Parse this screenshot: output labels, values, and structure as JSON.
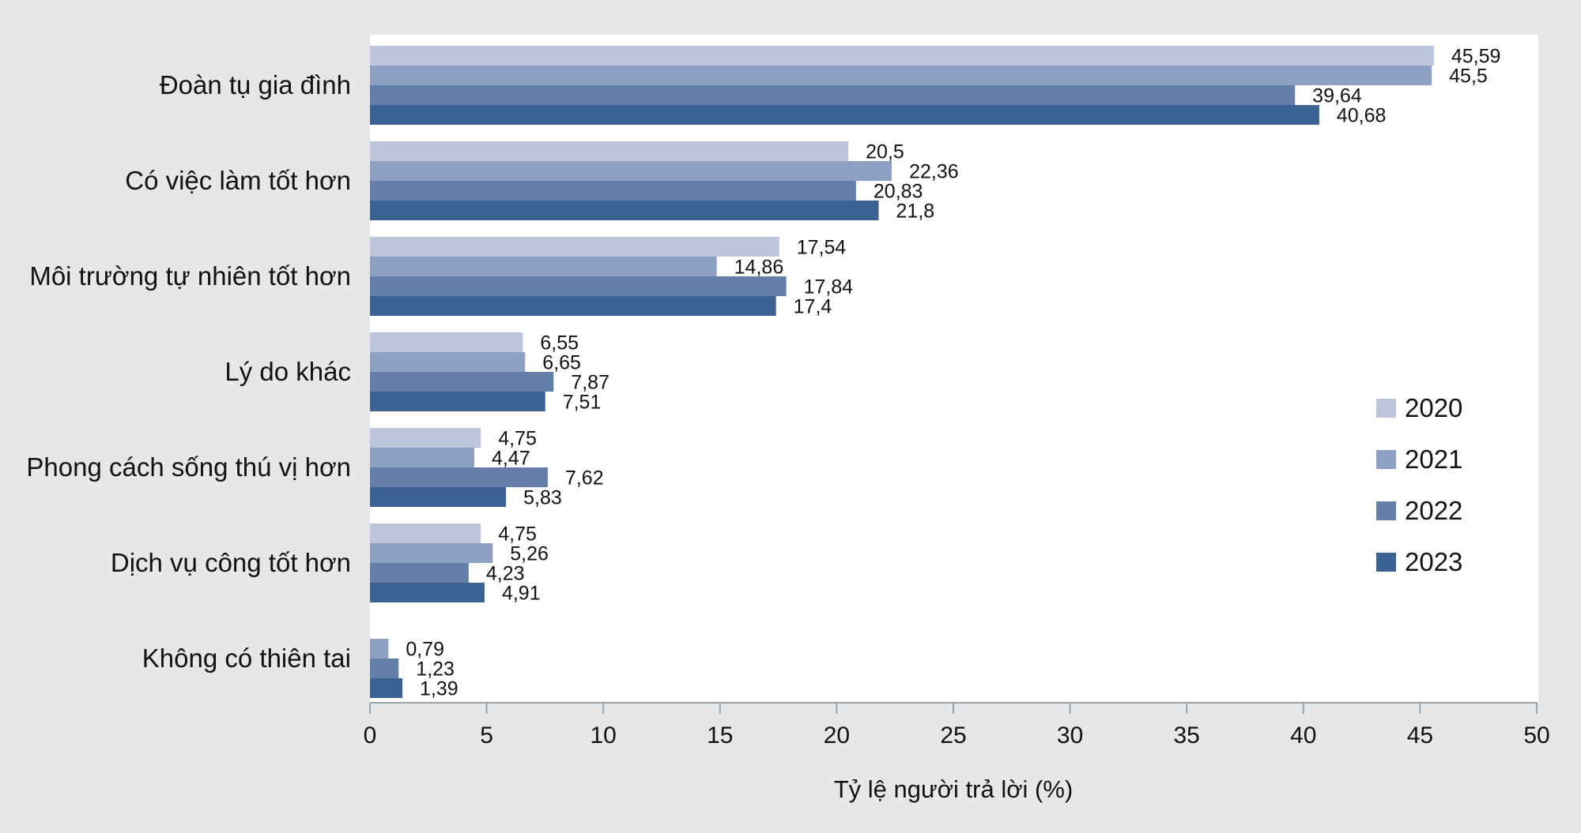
{
  "chart_data": {
    "type": "bar",
    "orientation": "horizontal",
    "title": "",
    "xlabel": "Tỷ lệ người trả lời (%)",
    "ylabel": "",
    "xlim": [
      0,
      50
    ],
    "xticks": [
      "0",
      "5",
      "10",
      "15",
      "20",
      "25",
      "30",
      "35",
      "40",
      "45",
      "50"
    ],
    "grid": false,
    "legend_position": "right",
    "categories": [
      "Đoàn tụ gia đình",
      "Có việc làm tốt hơn",
      "Môi trường tự nhiên tốt hơn",
      "Lý do khác",
      "Phong cách sống thú vị hơn",
      "Dịch vụ công tốt hơn",
      "Không có thiên tai"
    ],
    "series": [
      {
        "name": "2020",
        "color": "#bcc5dc",
        "values": [
          45.59,
          20.5,
          17.54,
          6.55,
          4.75,
          4.75,
          null
        ],
        "labels": [
          "45,59",
          "20,5",
          "17,54",
          "6,55",
          "4,75",
          "4,75",
          null
        ]
      },
      {
        "name": "2021",
        "color": "#8d9fc3",
        "values": [
          45.5,
          22.36,
          14.86,
          6.65,
          4.47,
          5.26,
          0.79
        ],
        "labels": [
          "45,5",
          "22,36",
          "14,86",
          "6,65",
          "4,47",
          "5,26",
          "0,79"
        ]
      },
      {
        "name": "2022",
        "color": "#657fab",
        "values": [
          39.64,
          20.83,
          17.84,
          7.87,
          7.62,
          4.23,
          1.23
        ],
        "labels": [
          "39,64",
          "20,83",
          "17,84",
          "7,87",
          "7,62",
          "4,23",
          "1,23"
        ]
      },
      {
        "name": "2023",
        "color": "#3c6193",
        "values": [
          40.68,
          21.8,
          17.4,
          7.51,
          5.83,
          4.91,
          1.39
        ],
        "labels": [
          "40,68",
          "21,8",
          "17,4",
          "7,51",
          "5,83",
          "4,91",
          "1,39"
        ]
      }
    ]
  }
}
